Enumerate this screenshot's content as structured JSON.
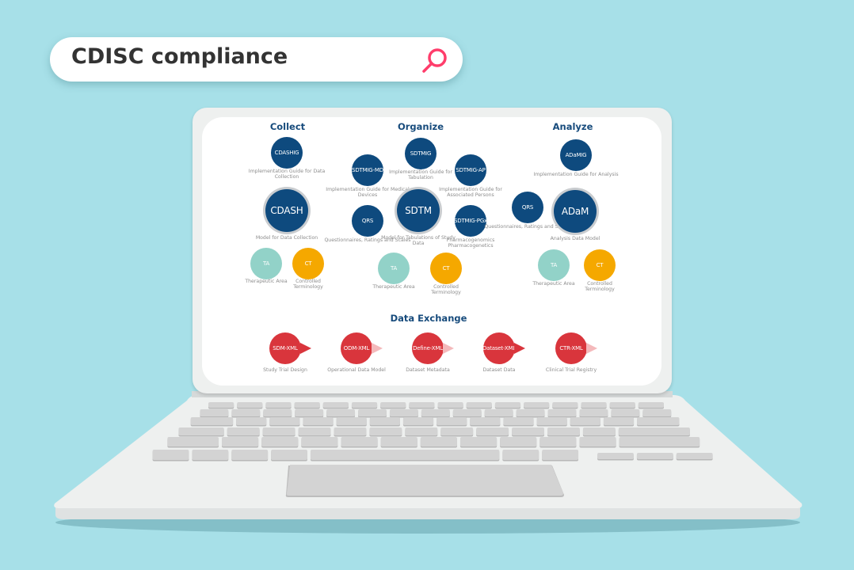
{
  "search": {
    "query": "CDISC compliance",
    "icon": "search-icon",
    "icon_color": "#ff3d6b"
  },
  "colors": {
    "background": "#a7e0e8",
    "navy": "#0e4a7e",
    "ta": "#92d2c8",
    "ct": "#f5a800",
    "exchange": "#d9353c",
    "arrow_light": "#f4b9bb"
  },
  "collect": {
    "title": "Collect",
    "cdashig": {
      "label": "CDASHIG",
      "caption": "Implementation Guide for Data Collection"
    },
    "cdash": {
      "label": "CDASH",
      "caption": "Model for Data Collection"
    },
    "ta": {
      "label": "TA",
      "caption": "Therapeutic Area"
    },
    "ct": {
      "label": "CT",
      "caption": "Controlled Terminology"
    }
  },
  "organize": {
    "title": "Organize",
    "sdtmig": {
      "label": "SDTMIG",
      "caption": "Implementation Guide for Tabulation"
    },
    "sdtmig_md": {
      "label": "SDTMIG-MD",
      "caption": "Implementation Guide for Medical Devices"
    },
    "sdtmig_ap": {
      "label": "SDTMIG-AP",
      "caption": "Implementation Guide for Associated Persons"
    },
    "sdtm": {
      "label": "SDTM",
      "caption": "Model for Tabulations of Study Data"
    },
    "qrs": {
      "label": "QRS",
      "caption": "Questionnaires, Ratings and Scales"
    },
    "sdtmig_pgx": {
      "label": "SDTMIG-PGx",
      "caption": "Pharmacogenomics Pharmacogenetics"
    },
    "ta": {
      "label": "TA",
      "caption": "Therapeutic Area"
    },
    "ct": {
      "label": "CT",
      "caption": "Controlled Terminology"
    }
  },
  "analyze": {
    "title": "Analyze",
    "adamig": {
      "label": "ADaMIG",
      "caption": "Implementation Guide for Analysis"
    },
    "qrs": {
      "label": "QRS",
      "caption": "Questionnaires, Ratings and Scales"
    },
    "adam": {
      "label": "ADaM",
      "caption": "Analysis Data Model"
    },
    "ta": {
      "label": "TA",
      "caption": "Therapeutic Area"
    },
    "ct": {
      "label": "CT",
      "caption": "Controlled Terminology"
    }
  },
  "exchange": {
    "title": "Data Exchange",
    "items": [
      {
        "label": "SDM-XML",
        "caption": "Study Trial Design"
      },
      {
        "label": "ODM-XML",
        "caption": "Operational Data Model"
      },
      {
        "label": "Define-XML",
        "caption": "Dataset Metadata"
      },
      {
        "label": "Dataset-XML",
        "caption": "Dataset Data"
      },
      {
        "label": "CTR-XML",
        "caption": "Clinical Trial Registry"
      }
    ]
  }
}
